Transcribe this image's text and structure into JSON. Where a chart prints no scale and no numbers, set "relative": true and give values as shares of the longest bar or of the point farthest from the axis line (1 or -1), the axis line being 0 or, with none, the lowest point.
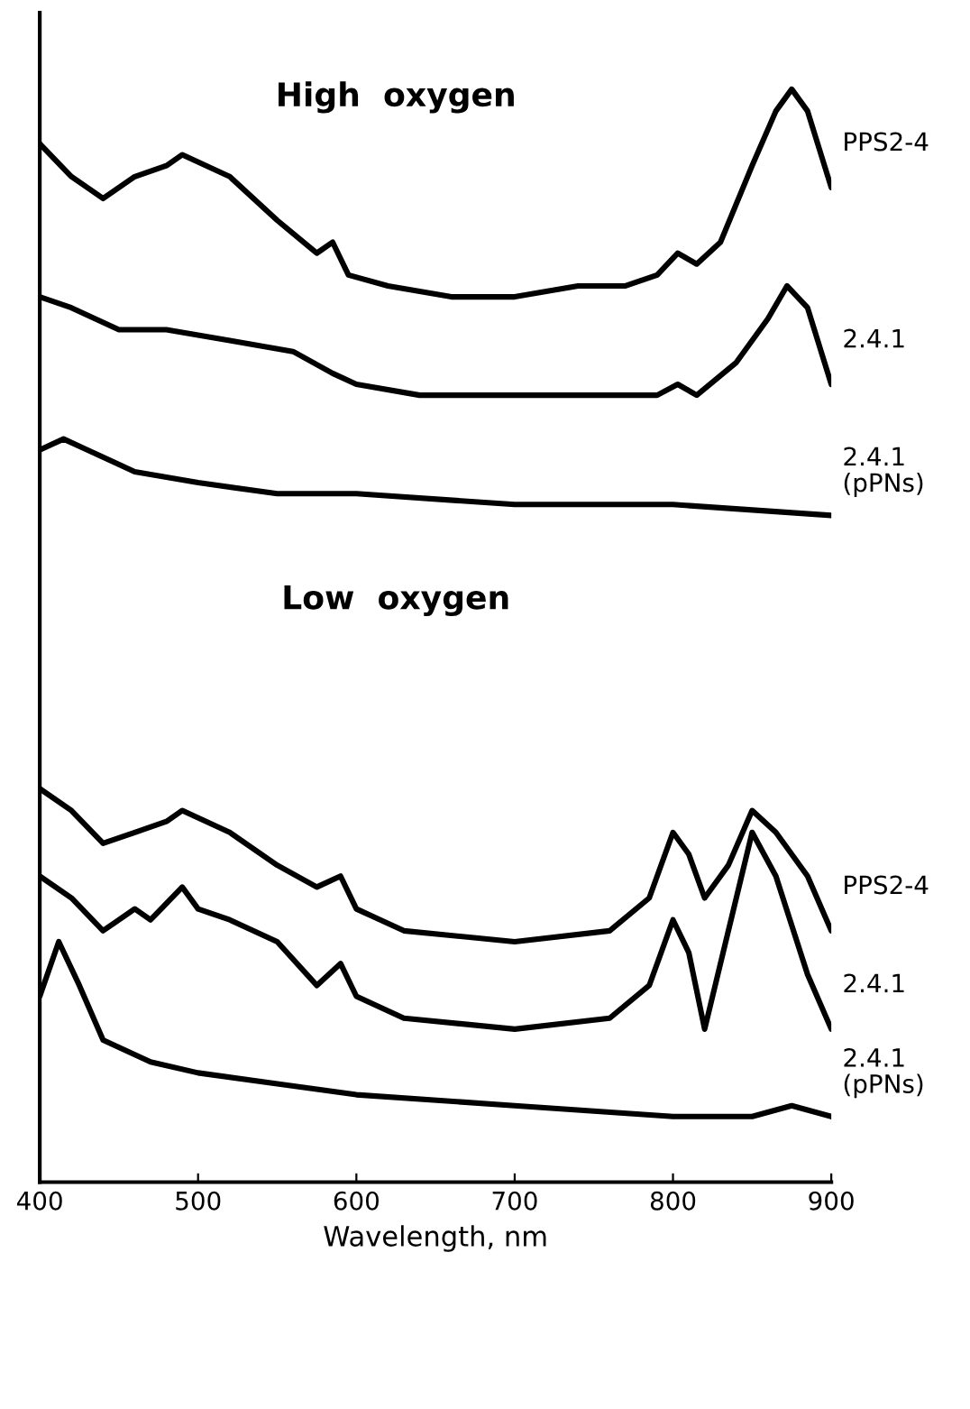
{
  "chart_data": {
    "type": "line",
    "relative": true,
    "xlabel": "Wavelength, nm",
    "xlim": [
      400,
      900
    ],
    "xticks": [
      400,
      500,
      600,
      700,
      800,
      900
    ],
    "grid": false,
    "legend": false,
    "marker": "none",
    "line_style": "solid",
    "annotations": [
      "High  oxygen",
      "Low  oxygen"
    ],
    "series": [
      {
        "name": "PPS2-4",
        "color": "#000000",
        "x": [
          400,
          420,
          440,
          460,
          480,
          490,
          520,
          550,
          575,
          585,
          595,
          620,
          660,
          700,
          740,
          770,
          790,
          803,
          815,
          830,
          850,
          865,
          875,
          885,
          900
        ],
        "values": [
          0.95,
          0.92,
          0.9,
          0.92,
          0.93,
          0.94,
          0.92,
          0.88,
          0.85,
          0.86,
          0.83,
          0.82,
          0.81,
          0.81,
          0.82,
          0.82,
          0.83,
          0.85,
          0.84,
          0.86,
          0.93,
          0.98,
          1,
          0.98,
          0.91
        ]
      },
      {
        "name": "2.4.1",
        "color": "#000000",
        "x": [
          400,
          420,
          450,
          480,
          520,
          560,
          585,
          600,
          640,
          700,
          760,
          790,
          803,
          815,
          840,
          860,
          872,
          885,
          900
        ],
        "values": [
          0.81,
          0.8,
          0.78,
          0.78,
          0.77,
          0.76,
          0.74,
          0.73,
          0.72,
          0.72,
          0.72,
          0.72,
          0.73,
          0.72,
          0.75,
          0.79,
          0.82,
          0.8,
          0.73
        ]
      },
      {
        "name": "2.4.1\n(pPNs)",
        "color": "#000000",
        "x": [
          400,
          415,
          430,
          460,
          500,
          550,
          600,
          700,
          800,
          900
        ],
        "values": [
          0.67,
          0.68,
          0.67,
          0.65,
          0.64,
          0.63,
          0.63,
          0.62,
          0.62,
          0.61
        ]
      },
      {
        "name": "PPS2-4",
        "color": "#000000",
        "x": [
          400,
          420,
          440,
          460,
          480,
          490,
          520,
          550,
          575,
          590,
          600,
          630,
          700,
          760,
          785,
          800,
          810,
          820,
          835,
          850,
          865,
          885,
          900
        ],
        "values": [
          0.36,
          0.34,
          0.31,
          0.32,
          0.33,
          0.34,
          0.32,
          0.29,
          0.27,
          0.28,
          0.25,
          0.23,
          0.22,
          0.23,
          0.26,
          0.32,
          0.3,
          0.26,
          0.29,
          0.34,
          0.32,
          0.28,
          0.23
        ]
      },
      {
        "name": "2.4.1",
        "color": "#000000",
        "x": [
          400,
          420,
          440,
          460,
          470,
          490,
          500,
          520,
          550,
          575,
          590,
          600,
          630,
          700,
          760,
          785,
          800,
          810,
          820,
          835,
          850,
          865,
          885,
          900
        ],
        "values": [
          0.28,
          0.26,
          0.23,
          0.25,
          0.24,
          0.27,
          0.25,
          0.24,
          0.22,
          0.18,
          0.2,
          0.17,
          0.15,
          0.14,
          0.15,
          0.18,
          0.24,
          0.21,
          0.14,
          0.23,
          0.32,
          0.28,
          0.19,
          0.14
        ]
      },
      {
        "name": "2.4.1\n(pPNs)",
        "color": "#000000",
        "x": [
          400,
          412,
          425,
          440,
          470,
          500,
          550,
          600,
          700,
          800,
          850,
          875,
          900
        ],
        "values": [
          0.17,
          0.22,
          0.18,
          0.13,
          0.11,
          0.1,
          0.09,
          0.08,
          0.07,
          0.06,
          0.06,
          0.07,
          0.06
        ]
      }
    ]
  }
}
